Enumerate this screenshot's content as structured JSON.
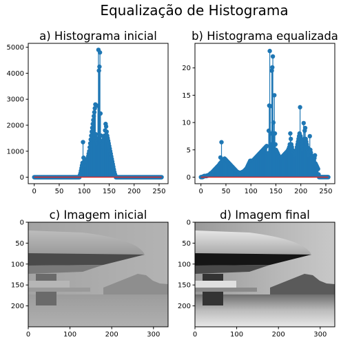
{
  "figure": {
    "suptitle": "Equalização de Histograma",
    "colors": {
      "stem": "#1f77b4",
      "baseline": "#d62728",
      "background": "#ffffff"
    }
  },
  "chart_data": [
    {
      "id": "a",
      "type": "stem",
      "title": "a) Histograma inicial",
      "xlim": [
        -12,
        268
      ],
      "ylim": [
        -250,
        5150
      ],
      "xticks": [
        0,
        50,
        100,
        150,
        200,
        250
      ],
      "yticks": [
        0,
        1000,
        2000,
        3000,
        4000,
        5000
      ],
      "x_range": [
        0,
        255
      ],
      "values": [
        0,
        0,
        0,
        0,
        0,
        0,
        0,
        0,
        0,
        0,
        0,
        0,
        0,
        0,
        0,
        0,
        0,
        0,
        0,
        0,
        0,
        0,
        0,
        0,
        0,
        0,
        0,
        0,
        0,
        0,
        0,
        0,
        0,
        0,
        0,
        0,
        0,
        0,
        0,
        0,
        0,
        0,
        0,
        0,
        0,
        0,
        0,
        0,
        0,
        0,
        0,
        0,
        0,
        0,
        0,
        0,
        0,
        0,
        0,
        0,
        0,
        0,
        0,
        0,
        0,
        0,
        0,
        0,
        0,
        0,
        0,
        0,
        0,
        0,
        0,
        0,
        0,
        0,
        0,
        0,
        0,
        0,
        0,
        0,
        0,
        0,
        0,
        0,
        0,
        80,
        150,
        250,
        350,
        450,
        550,
        1350,
        750,
        600,
        700,
        650,
        550,
        450,
        500,
        600,
        700,
        800,
        900,
        1000,
        1150,
        1300,
        1450,
        1600,
        1750,
        1900,
        2050,
        2200,
        2350,
        2500,
        2650,
        2800,
        1650,
        1500,
        1400,
        1300,
        2750,
        4900,
        4100,
        4250,
        4800,
        2450,
        1600,
        1400,
        1300,
        1200,
        1250,
        1400,
        1500,
        1600,
        1800,
        2050,
        1950,
        1750,
        1600,
        1500,
        1400,
        1300,
        1200,
        1100,
        1000,
        900,
        800,
        700,
        600,
        500,
        400,
        300,
        200,
        120,
        60,
        0,
        0,
        0,
        0,
        0,
        0,
        0,
        0,
        0,
        0,
        0,
        0,
        0,
        0,
        0,
        0,
        0,
        0,
        0,
        0,
        0,
        0,
        0,
        0,
        0,
        0,
        0,
        0,
        0,
        0,
        0,
        0,
        0,
        0,
        0,
        0,
        0,
        0,
        0,
        0,
        0,
        0,
        0,
        0,
        0,
        0,
        0,
        0,
        0,
        0,
        0,
        0,
        0,
        0,
        0,
        0,
        0,
        0,
        0,
        0,
        0,
        0,
        0,
        0,
        0,
        0,
        0,
        0,
        0,
        0,
        0,
        0,
        0,
        0,
        0,
        0,
        0,
        0,
        0,
        0,
        0,
        0,
        0,
        0,
        0,
        0,
        0,
        0,
        0,
        0
      ]
    },
    {
      "id": "b",
      "type": "stem",
      "title": "b) Histograma equalizada",
      "xlim": [
        -12,
        268
      ],
      "ylim": [
        -1.2,
        24.5
      ],
      "xticks": [
        0,
        50,
        100,
        150,
        200,
        250
      ],
      "yticks": [
        0,
        5,
        10,
        15,
        20
      ],
      "x_range": [
        0,
        255
      ],
      "values": [
        0.0,
        0.0,
        0.0,
        0.0,
        0.1,
        0.1,
        0.2,
        0.2,
        0.2,
        0.2,
        0.2,
        0.2,
        0.3,
        0.3,
        0.3,
        0.4,
        0.4,
        0.5,
        0.6,
        0.7,
        0.7,
        0.8,
        0.9,
        1.0,
        1.1,
        1.2,
        1.3,
        1.4,
        1.5,
        1.6,
        1.7,
        1.8,
        1.9,
        2.0,
        2.1,
        2.2,
        2.3,
        2.5,
        3.6,
        2.7,
        6.4,
        2.9,
        3.0,
        3.1,
        3.2,
        3.3,
        3.4,
        3.3,
        3.2,
        3.1,
        3.0,
        2.9,
        2.8,
        2.7,
        2.6,
        2.5,
        2.4,
        2.3,
        2.2,
        2.1,
        2.0,
        1.9,
        1.8,
        1.7,
        1.6,
        1.5,
        1.4,
        1.3,
        1.2,
        1.1,
        1.0,
        0.95,
        0.9,
        0.85,
        0.8,
        0.8,
        0.8,
        0.8,
        0.8,
        0.85,
        0.9,
        0.95,
        1.0,
        1.05,
        1.1,
        1.2,
        1.3,
        1.4,
        1.5,
        1.6,
        1.8,
        2.0,
        2.2,
        2.4,
        2.6,
        2.8,
        3.0,
        3.0,
        3.0,
        3.0,
        3.0,
        3.0,
        3.1,
        3.2,
        3.3,
        3.4,
        3.5,
        3.6,
        3.7,
        3.8,
        3.9,
        4.0,
        4.1,
        4.2,
        4.3,
        4.4,
        4.5,
        4.6,
        4.7,
        4.8,
        4.9,
        5.0,
        5.1,
        5.2,
        5.3,
        5.4,
        5.5,
        5.6,
        5.7,
        4.2,
        4.3,
        4.4,
        8.5,
        13.1,
        23.1,
        13.0,
        8.0,
        6.0,
        19.5,
        20.1,
        22.1,
        10.0,
        8.0,
        15.0,
        8.0,
        6.0,
        5.0,
        4.8,
        4.6,
        4.4,
        4.2,
        4.0,
        3.8,
        3.6,
        3.4,
        3.4,
        3.5,
        3.6,
        3.7,
        3.8,
        3.9,
        4.0,
        4.1,
        4.2,
        4.3,
        4.4,
        4.5,
        4.6,
        4.7,
        4.8,
        5.0,
        5.2,
        5.5,
        6.0,
        8.0,
        7.0,
        6.0,
        5.5,
        5.0,
        4.8,
        4.6,
        4.4,
        4.2,
        4.0,
        4.2,
        4.5,
        5.0,
        5.5,
        6.0,
        6.5,
        7.0,
        7.5,
        8.0,
        12.8,
        7.5,
        7.0,
        6.5,
        6.0,
        5.5,
        5.0,
        9.9,
        7.0,
        8.5,
        9.0,
        7.0,
        6.5,
        6.0,
        5.5,
        5.0,
        4.5,
        4.0,
        5.1,
        7.5,
        5.0,
        4.5,
        4.0,
        3.8,
        3.6,
        3.4,
        2.5,
        3.0,
        3.5,
        4.0,
        2.5,
        2.3,
        2.1,
        1.9,
        1.7,
        1.5,
        0.5,
        0.0,
        0.0,
        0.0,
        0.0,
        0.0,
        0.0,
        0.0,
        0.0,
        0.0,
        0.0,
        0.0,
        0.0,
        0.0,
        0.0,
        0.0,
        0.0,
        0.0,
        0.0,
        0.0
      ]
    },
    {
      "id": "c",
      "type": "image",
      "title": "c) Imagem inicial",
      "xlim": [
        0,
        335
      ],
      "ylim": [
        250,
        0
      ],
      "xticks": [
        0,
        100,
        200,
        300
      ],
      "yticks": [
        0,
        50,
        100,
        150,
        200
      ]
    },
    {
      "id": "d",
      "type": "image",
      "title": "d) Imagem final",
      "xlim": [
        0,
        335
      ],
      "ylim": [
        250,
        0
      ],
      "xticks": [
        0,
        100,
        200,
        300
      ],
      "yticks": [
        0,
        50,
        100,
        150,
        200
      ]
    }
  ]
}
